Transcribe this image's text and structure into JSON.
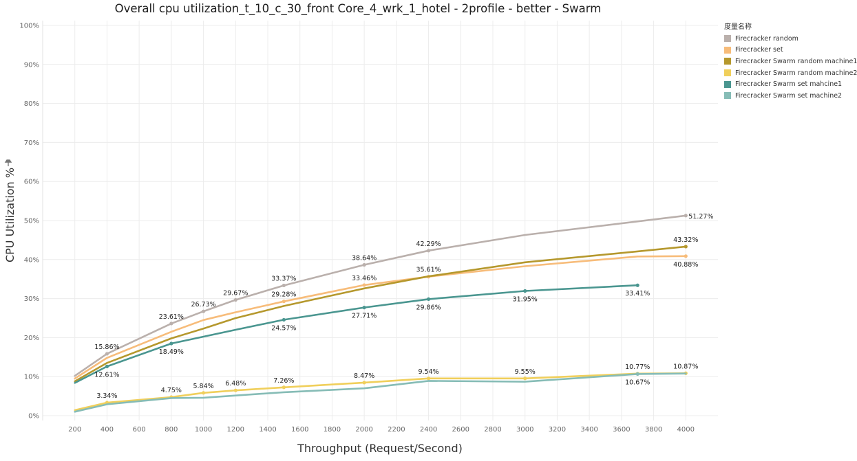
{
  "chart_data": {
    "type": "line",
    "title": "Overall cpu utilization_t_10_c_30_front Core_4_wrk_1_hotel - 2profile - better - Swarm",
    "xlabel": "Throughput (Request/Second)",
    "ylabel": "CPU Utilization %",
    "xlim": [
      0,
      4200
    ],
    "ylim": [
      0,
      100
    ],
    "x_ticks": [
      200,
      400,
      600,
      800,
      1000,
      1200,
      1400,
      1600,
      1800,
      2000,
      2200,
      2400,
      2600,
      2800,
      3000,
      3200,
      3400,
      3600,
      3800,
      4000
    ],
    "y_ticks": [
      {
        "value": 0,
        "label": "0%"
      },
      {
        "value": 10,
        "label": "10%"
      },
      {
        "value": 20,
        "label": "20%"
      },
      {
        "value": 30,
        "label": "30%"
      },
      {
        "value": 40,
        "label": "40%"
      },
      {
        "value": 50,
        "label": "50%"
      },
      {
        "value": 60,
        "label": "60%"
      },
      {
        "value": 70,
        "label": "70%"
      },
      {
        "value": 80,
        "label": "80%"
      },
      {
        "value": 90,
        "label": "90%"
      },
      {
        "value": 100,
        "label": "100%"
      }
    ],
    "grid": true,
    "legend_title": "度量名称",
    "legend_position": "top-right",
    "series": [
      {
        "name": "Firecracker random",
        "color": "#bab0ac",
        "x": [
          200,
          400,
          800,
          1000,
          1200,
          1500,
          2000,
          2400,
          3000,
          4000
        ],
        "y": [
          10.2,
          15.86,
          23.61,
          26.73,
          29.67,
          33.37,
          38.64,
          42.29,
          46.3,
          51.27
        ],
        "labels": [
          null,
          "15.86%",
          "23.61%",
          "26.73%",
          "29.67%",
          "33.37%",
          "38.64%",
          "42.29%",
          null,
          "51.27%"
        ],
        "label_pos": [
          null,
          "above",
          "above",
          "above",
          "above",
          "above",
          "above",
          "above",
          null,
          "right"
        ]
      },
      {
        "name": "Firecracker set",
        "color": "#f7bc7a",
        "x": [
          200,
          400,
          800,
          1000,
          1200,
          1500,
          2000,
          2400,
          3000,
          3700,
          4000
        ],
        "y": [
          9.5,
          14.8,
          21.5,
          24.5,
          26.5,
          29.28,
          33.46,
          35.61,
          38.3,
          40.8,
          40.88
        ],
        "labels": [
          null,
          null,
          null,
          null,
          null,
          "29.28%",
          "33.46%",
          "35.61%",
          null,
          null,
          "40.88%"
        ],
        "label_pos": [
          null,
          null,
          null,
          null,
          null,
          "above",
          "above",
          "above",
          null,
          null,
          "below"
        ]
      },
      {
        "name": "Firecracker Swarm random machine1",
        "color": "#b5982d",
        "x": [
          200,
          400,
          800,
          1000,
          1200,
          1500,
          2000,
          2400,
          3000,
          3700,
          4000
        ],
        "y": [
          8.8,
          13.5,
          19.8,
          22.3,
          25.0,
          28.1,
          32.6,
          35.7,
          39.3,
          42.1,
          43.32
        ],
        "labels": [
          null,
          null,
          null,
          null,
          null,
          null,
          null,
          null,
          null,
          null,
          "43.32%"
        ],
        "label_pos": [
          null,
          null,
          null,
          null,
          null,
          null,
          null,
          null,
          null,
          null,
          "above"
        ]
      },
      {
        "name": "Firecracker Swarm random machine2",
        "color": "#f0cf5b",
        "x": [
          200,
          400,
          800,
          1000,
          1200,
          1500,
          2000,
          2400,
          3000,
          3700,
          4000
        ],
        "y": [
          1.4,
          3.34,
          4.75,
          5.84,
          6.48,
          7.26,
          8.47,
          9.54,
          9.55,
          10.77,
          10.87
        ],
        "labels": [
          null,
          "3.34%",
          "4.75%",
          "5.84%",
          "6.48%",
          "7.26%",
          "8.47%",
          "9.54%",
          "9.55%",
          "10.77%",
          "10.87%"
        ],
        "label_pos": [
          null,
          "above",
          "above",
          "above",
          "above",
          "above",
          "above",
          "above",
          "above",
          "above",
          "above"
        ]
      },
      {
        "name": "Firecracker Swarm set mahcine1",
        "color": "#4a9690",
        "x": [
          200,
          400,
          800,
          1200,
          1500,
          2000,
          2400,
          3000,
          3700
        ],
        "y": [
          8.4,
          12.61,
          18.49,
          22.0,
          24.57,
          27.71,
          29.86,
          31.95,
          33.41
        ],
        "labels": [
          null,
          "12.61%",
          "18.49%",
          null,
          "24.57%",
          "27.71%",
          "29.86%",
          "31.95%",
          "33.41%"
        ],
        "label_pos": [
          null,
          "below",
          "below",
          null,
          "below",
          "below",
          "below",
          "below",
          "below"
        ]
      },
      {
        "name": "Firecracker Swarm set machine2",
        "color": "#86bcb6",
        "x": [
          200,
          400,
          800,
          1000,
          1500,
          2000,
          2400,
          3000,
          3700,
          4000
        ],
        "y": [
          1.0,
          2.9,
          4.5,
          4.6,
          6.0,
          7.0,
          8.9,
          8.7,
          10.67,
          10.8
        ],
        "labels": [
          null,
          null,
          null,
          null,
          null,
          null,
          null,
          null,
          "10.67%",
          null
        ],
        "label_pos": [
          null,
          null,
          null,
          null,
          null,
          null,
          null,
          null,
          "below",
          null
        ]
      }
    ]
  }
}
